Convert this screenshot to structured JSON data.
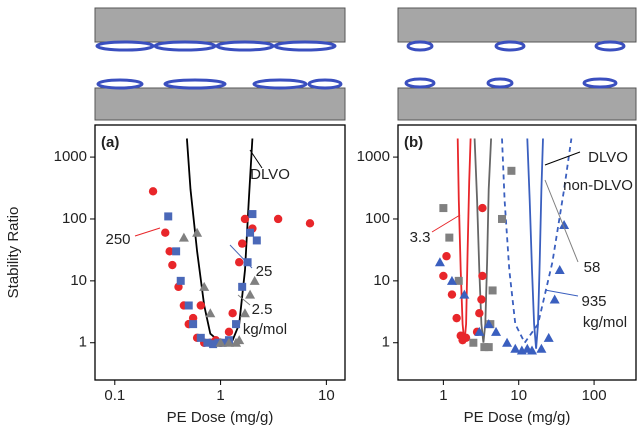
{
  "chart_data": [
    {
      "type": "scatter",
      "label": "(a)",
      "xlabel": "PE Dose (mg/g)",
      "ylabel": "Stability Ratio",
      "log_x": true,
      "log_y": true,
      "xlim": [
        0.065,
        15
      ],
      "ylim": [
        0.25,
        3300
      ],
      "xticks": [
        0.1,
        1,
        10
      ],
      "yticks": [
        1,
        10,
        100,
        1000
      ],
      "series": [
        {
          "name": "250",
          "color": "#e8262a",
          "marker": "circle",
          "x": [
            0.23,
            0.3,
            0.33,
            0.35,
            0.4,
            0.45,
            0.5,
            0.55,
            0.6,
            0.65,
            0.7,
            0.8,
            0.9,
            1.0,
            1.2,
            1.3,
            1.5,
            1.6,
            1.7,
            2.0,
            3.5,
            7
          ],
          "values": [
            280,
            60,
            30,
            18,
            8,
            4,
            2,
            2.5,
            1.2,
            4,
            1.0,
            1.0,
            1.1,
            1.0,
            1.5,
            3,
            20,
            40,
            100,
            70,
            100,
            85
          ]
        },
        {
          "name": "25",
          "color": "#4a68b8",
          "marker": "square",
          "x": [
            0.32,
            0.38,
            0.42,
            0.5,
            0.55,
            0.65,
            0.75,
            0.85,
            0.95,
            1.05,
            1.2,
            1.4,
            1.6,
            1.8,
            1.9,
            2.0,
            2.2
          ],
          "values": [
            110,
            30,
            10,
            4,
            2,
            1.2,
            1.0,
            0.95,
            1.0,
            1.0,
            1.1,
            2,
            8,
            20,
            60,
            120,
            45
          ]
        },
        {
          "name": "2.5",
          "color": "#808080",
          "marker": "triangle",
          "x": [
            0.45,
            0.6,
            0.7,
            0.8,
            1.0,
            1.2,
            1.4,
            1.5,
            1.7,
            1.9,
            2.1
          ],
          "values": [
            50,
            60,
            8,
            3,
            1.0,
            1.0,
            1.0,
            1.1,
            3,
            6,
            10
          ]
        }
      ],
      "curves": [
        {
          "color": "#000000",
          "dashed": false,
          "x": [
            0.48,
            0.52,
            0.6,
            0.7,
            0.8,
            1.0,
            1.3,
            1.5,
            1.7,
            1.85,
            2.0
          ],
          "y": [
            2000,
            300,
            30,
            4,
            1.4,
            1,
            1.1,
            2,
            15,
            200,
            2000
          ]
        }
      ],
      "annotations": [
        {
          "text": "DLVO",
          "color": "#000000"
        },
        {
          "text": "kg/mol",
          "color": "#808080"
        }
      ]
    },
    {
      "type": "scatter",
      "label": "(b)",
      "xlabel": "PE Dose (mg/g)",
      "log_x": true,
      "log_y": true,
      "xlim": [
        0.25,
        360
      ],
      "ylim": [
        0.25,
        3300
      ],
      "xticks": [
        1,
        10,
        100
      ],
      "yticks": [
        1,
        10,
        100,
        1000
      ],
      "series": [
        {
          "name": "3.3",
          "color": "#e8262a",
          "marker": "circle",
          "x": [
            1.0,
            1.1,
            1.3,
            1.5,
            1.7,
            1.8,
            2.0,
            2.8,
            3.0,
            3.2,
            3.3,
            3.3
          ],
          "values": [
            12,
            25,
            6,
            2.5,
            1.3,
            1.1,
            1.2,
            1.5,
            3,
            5,
            12,
            150
          ]
        },
        {
          "name": "58",
          "color": "#808080",
          "marker": "square",
          "x": [
            1.0,
            1.2,
            1.6,
            2.5,
            3.5,
            4.0,
            4.2,
            4.5,
            6,
            8
          ],
          "values": [
            150,
            50,
            10,
            1.0,
            0.85,
            0.85,
            2,
            7,
            100,
            600
          ]
        },
        {
          "name": "935",
          "color": "#3a5fbf",
          "marker": "triangle",
          "x": [
            0.9,
            1.3,
            1.9,
            3.0,
            4.0,
            5,
            7,
            9,
            11,
            13,
            15,
            20,
            25,
            30,
            35,
            40
          ],
          "values": [
            20,
            10,
            6,
            1.5,
            2,
            1.5,
            1.0,
            0.8,
            0.75,
            0.8,
            0.75,
            0.8,
            1.2,
            5,
            15,
            80
          ]
        }
      ],
      "curves": [
        {
          "color": "#e8262a",
          "dashed": false,
          "x": [
            1.55,
            1.6,
            1.7,
            1.8,
            1.9,
            2.0,
            2.1,
            2.2,
            2.3
          ],
          "y": [
            2000,
            200,
            15,
            2,
            1,
            2,
            30,
            400,
            2000
          ]
        },
        {
          "color": "#666666",
          "dashed": false,
          "x": [
            2.6,
            2.8,
            3.0,
            3.2,
            3.4,
            3.6,
            3.8,
            4.0,
            4.3
          ],
          "y": [
            2000,
            200,
            15,
            2,
            1,
            2,
            20,
            300,
            2000
          ]
        },
        {
          "color": "#3a5fbf",
          "dashed": false,
          "x": [
            13,
            14,
            15,
            16,
            17,
            18,
            19,
            20,
            21
          ],
          "y": [
            2000,
            200,
            15,
            2,
            0.8,
            2,
            20,
            300,
            2000
          ]
        },
        {
          "color": "#3a5fbf",
          "dashed": true,
          "x": [
            6,
            6.5,
            7.5,
            9,
            12,
            18,
            28,
            40,
            50
          ],
          "y": [
            2000,
            200,
            15,
            2,
            1,
            2,
            20,
            300,
            2000
          ]
        }
      ],
      "annotations": [
        {
          "text": "DLVO",
          "color": "#000000"
        },
        {
          "text": "non-DLVO",
          "color": "#000000"
        },
        {
          "text": "kg/mol",
          "color": "#3a5fbf"
        }
      ]
    }
  ]
}
